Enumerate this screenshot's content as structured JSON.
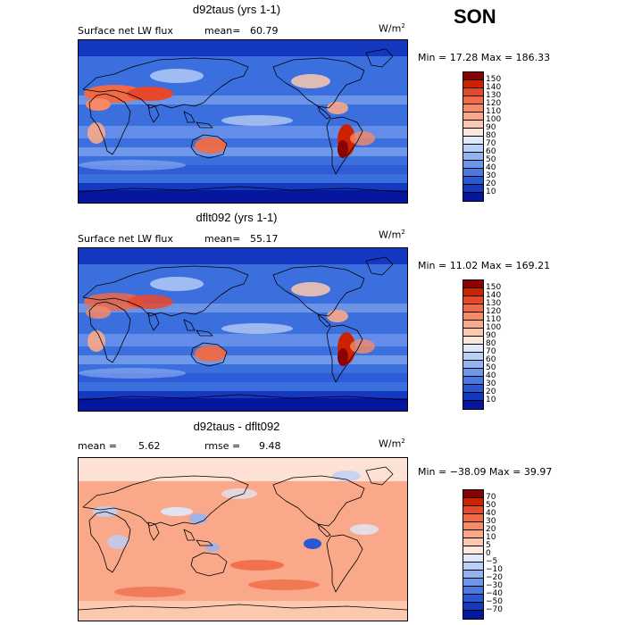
{
  "season": "SON",
  "panels": [
    {
      "id": "p1",
      "title": "d92taus (yrs 1-1)",
      "variable": "Surface net LW flux",
      "stat_label": "mean=",
      "stat_value": "60.79",
      "units_base": "W/m",
      "units_exp": "2",
      "minmax": "Min =  17.28 Max = 186.33",
      "levels": [
        "150",
        "140",
        "130",
        "120",
        "110",
        "100",
        "90",
        "80",
        "70",
        "60",
        "50",
        "40",
        "30",
        "20",
        "10"
      ],
      "colors": [
        "#8b0000",
        "#cc2200",
        "#e8482a",
        "#f06a45",
        "#f58a65",
        "#f9a98a",
        "#fcc9b0",
        "#fde7dc",
        "#dfe9fb",
        "#b9d0f7",
        "#93b4f1",
        "#6d95ea",
        "#4a77e0",
        "#2b57d3",
        "#1438c0",
        "#06169e"
      ]
    },
    {
      "id": "p2",
      "title": "dflt092 (yrs 1-1)",
      "variable": "Surface net LW flux",
      "stat_label": "mean=",
      "stat_value": "55.17",
      "units_base": "W/m",
      "units_exp": "2",
      "minmax": "Min =  11.02 Max = 169.21",
      "levels": [
        "150",
        "140",
        "130",
        "120",
        "110",
        "100",
        "90",
        "80",
        "70",
        "60",
        "50",
        "40",
        "30",
        "20",
        "10"
      ],
      "colors": [
        "#8b0000",
        "#cc2200",
        "#e8482a",
        "#f06a45",
        "#f58a65",
        "#f9a98a",
        "#fcc9b0",
        "#fde7dc",
        "#dfe9fb",
        "#b9d0f7",
        "#93b4f1",
        "#6d95ea",
        "#4a77e0",
        "#2b57d3",
        "#1438c0",
        "#06169e"
      ]
    },
    {
      "id": "p3",
      "title": "d92taus - dflt092",
      "mean_label": "mean =",
      "mean_value": "5.62",
      "rmse_label": "rmse =",
      "rmse_value": "9.48",
      "units_base": "W/m",
      "units_exp": "2",
      "minmax": "Min = −38.09 Max =  39.97",
      "levels": [
        "70",
        "50",
        "40",
        "30",
        "20",
        "10",
        "5",
        "0",
        "−5",
        "−10",
        "−20",
        "−30",
        "−40",
        "−50",
        "−70"
      ],
      "colors": [
        "#8b0000",
        "#cc2200",
        "#e8482a",
        "#f06a45",
        "#f58a65",
        "#f9a98a",
        "#fcc9b0",
        "#fde7dc",
        "#dfe9fb",
        "#b9d0f7",
        "#93b4f1",
        "#6d95ea",
        "#4a77e0",
        "#2b57d3",
        "#1438c0",
        "#06169e"
      ]
    }
  ]
}
